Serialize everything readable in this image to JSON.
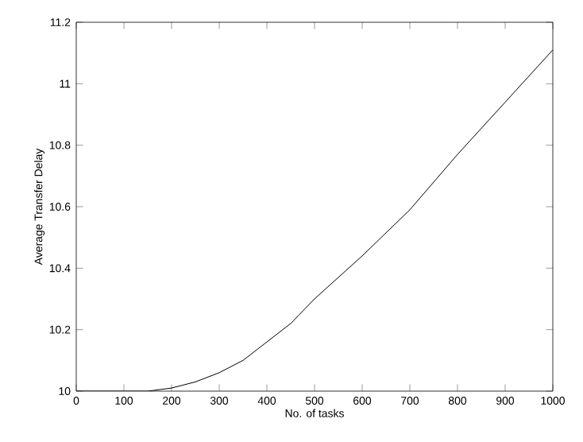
{
  "chart_data": {
    "type": "line",
    "xlabel": "No. of tasks",
    "ylabel": "Average Transfer Delay",
    "x": [
      0,
      50,
      100,
      150,
      200,
      250,
      300,
      350,
      400,
      450,
      500,
      600,
      700,
      800,
      900,
      1000
    ],
    "series": [
      {
        "color": "#000000",
        "values": [
          10,
          10,
          10,
          10,
          10.01,
          10.03,
          10.06,
          10.1,
          10.16,
          10.22,
          10.3,
          10.44,
          10.59,
          10.77,
          10.94,
          11.11
        ]
      }
    ],
    "xlim": [
      0,
      1000
    ],
    "ylim": [
      10,
      11.2
    ],
    "xticks": [
      0,
      100,
      200,
      300,
      400,
      500,
      600,
      700,
      800,
      900,
      1000
    ],
    "yticks": [
      10,
      10.2,
      10.4,
      10.6,
      10.8,
      11,
      11.2
    ],
    "marker": "none",
    "line_style": "solid"
  }
}
